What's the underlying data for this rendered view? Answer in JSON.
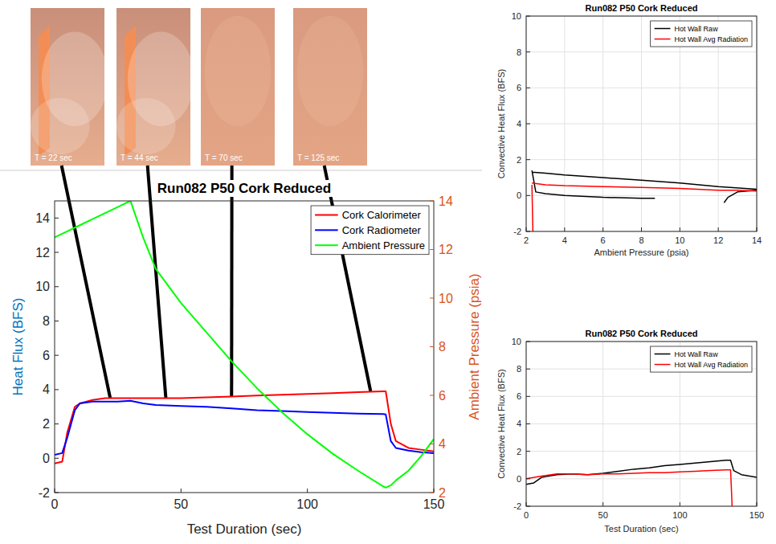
{
  "chart_data": [
    {
      "type": "line",
      "title": "Run082 P50 Cork Reduced",
      "xlabel": "Test Duration (sec)",
      "ylabel": "Heat Flux (BFS)",
      "y2label": "Ambient Pressure (psia)",
      "x": [
        0,
        3,
        5,
        8,
        10,
        15,
        20,
        25,
        30,
        35,
        40,
        50,
        60,
        70,
        80,
        90,
        100,
        110,
        120,
        130,
        131,
        133,
        135,
        140,
        145,
        150
      ],
      "series": [
        {
          "name": "Cork Calorimeter",
          "color": "#ff0000",
          "values": [
            -0.3,
            -0.2,
            1.5,
            3.0,
            3.2,
            3.4,
            3.5,
            3.5,
            3.5,
            3.5,
            3.5,
            3.5,
            3.55,
            3.6,
            3.65,
            3.7,
            3.75,
            3.8,
            3.85,
            3.9,
            3.9,
            2.0,
            1.0,
            0.6,
            0.5,
            0.4
          ]
        },
        {
          "name": "Cork Radiometer",
          "color": "#0000ff",
          "values": [
            0.2,
            0.3,
            1.2,
            2.8,
            3.2,
            3.3,
            3.3,
            3.3,
            3.35,
            3.2,
            3.1,
            3.05,
            3.0,
            2.9,
            2.8,
            2.75,
            2.7,
            2.65,
            2.6,
            2.58,
            2.55,
            1.0,
            0.6,
            0.45,
            0.35,
            0.3
          ]
        },
        {
          "name": "Ambient Pressure",
          "color": "#00ff00",
          "axis": "y2",
          "values": [
            12.5,
            12.65,
            12.75,
            12.9,
            13.0,
            13.25,
            13.5,
            13.75,
            14.0,
            12.5,
            11.2,
            9.8,
            8.6,
            7.4,
            6.3,
            5.3,
            4.4,
            3.6,
            2.9,
            2.25,
            2.2,
            2.3,
            2.5,
            2.9,
            3.5,
            4.2
          ]
        }
      ],
      "xlim": [
        0,
        150
      ],
      "xticks": [
        0,
        50,
        100,
        150
      ],
      "ylim": [
        -2,
        15
      ],
      "yticks": [
        -2,
        0,
        2,
        4,
        6,
        8,
        10,
        12,
        14
      ],
      "y2lim": [
        2,
        14
      ],
      "y2ticks": [
        2,
        4,
        6,
        8,
        10,
        12,
        14
      ],
      "grid": false,
      "legend": "northeast",
      "annotations": [
        {
          "label": "T = 22 sec",
          "x": 22,
          "y": 3.5
        },
        {
          "label": "T = 44 sec",
          "x": 44,
          "y": 3.5
        },
        {
          "label": "T = 70 sec",
          "x": 70,
          "y": 3.6
        },
        {
          "label": "T = 125 sec",
          "x": 125,
          "y": 3.9
        }
      ]
    },
    {
      "type": "line",
      "title": "Run082 P50 Cork Reduced",
      "xlabel": "Ambient Pressure (psia)",
      "ylabel": "Convective Heat Flux (BFS)",
      "series": [
        {
          "name": "Hot Wall Raw",
          "color": "#000000",
          "x": [
            2.3,
            3,
            4,
            6,
            8,
            10,
            12,
            14,
            14,
            2.3,
            2.5,
            3,
            4,
            6,
            8,
            8.7,
            8.7,
            12.3,
            12.5,
            13,
            14
          ],
          "values": [
            1.3,
            1.25,
            1.15,
            1.0,
            0.85,
            0.7,
            0.5,
            0.35,
            null,
            1.4,
            0.2,
            0.1,
            0.0,
            -0.1,
            -0.15,
            -0.15,
            null,
            -0.4,
            -0.1,
            0.2,
            0.3
          ]
        },
        {
          "name": "Hot Wall Avg Radiation",
          "color": "#ff0000",
          "x": [
            2.3,
            3,
            4,
            6,
            8,
            10,
            12,
            13,
            14,
            14,
            2.3,
            2.35
          ],
          "values": [
            0.7,
            0.6,
            0.55,
            0.5,
            0.45,
            0.4,
            0.3,
            0.3,
            0.25,
            null,
            0.6,
            -2
          ]
        }
      ],
      "xlim": [
        2,
        14
      ],
      "xticks": [
        2,
        4,
        6,
        8,
        10,
        12,
        14
      ],
      "ylim": [
        -2,
        10
      ],
      "yticks": [
        -2,
        0,
        2,
        4,
        6,
        8,
        10
      ],
      "grid": true,
      "legend": "northeast"
    },
    {
      "type": "line",
      "title": "Run082 P50 Cork Reduced",
      "xlabel": "Test Duration (sec)",
      "ylabel": "Convective Heat Flux (BFS)",
      "series": [
        {
          "name": "Hot Wall Raw",
          "color": "#000000",
          "x": [
            0,
            5,
            10,
            20,
            30,
            40,
            50,
            60,
            70,
            80,
            90,
            100,
            110,
            120,
            130,
            133,
            135,
            140,
            150
          ],
          "values": [
            -0.4,
            -0.3,
            0.1,
            0.3,
            0.35,
            0.3,
            0.4,
            0.55,
            0.7,
            0.8,
            0.95,
            1.05,
            1.15,
            1.25,
            1.35,
            1.35,
            0.6,
            0.3,
            0.1
          ]
        },
        {
          "name": "Hot Wall Avg Radiation",
          "color": "#ff0000",
          "x": [
            0,
            10,
            20,
            30,
            40,
            50,
            60,
            70,
            80,
            90,
            100,
            110,
            120,
            130,
            133,
            134
          ],
          "values": [
            0,
            0.2,
            0.35,
            0.35,
            0.3,
            0.35,
            0.35,
            0.4,
            0.45,
            0.45,
            0.5,
            0.55,
            0.6,
            0.65,
            0.65,
            -2
          ]
        }
      ],
      "xlim": [
        0,
        150
      ],
      "xticks": [
        0,
        50,
        100,
        150
      ],
      "ylim": [
        -2,
        10
      ],
      "yticks": [
        -2,
        0,
        2,
        4,
        6,
        8,
        10
      ],
      "grid": true,
      "legend": "northeast"
    }
  ]
}
